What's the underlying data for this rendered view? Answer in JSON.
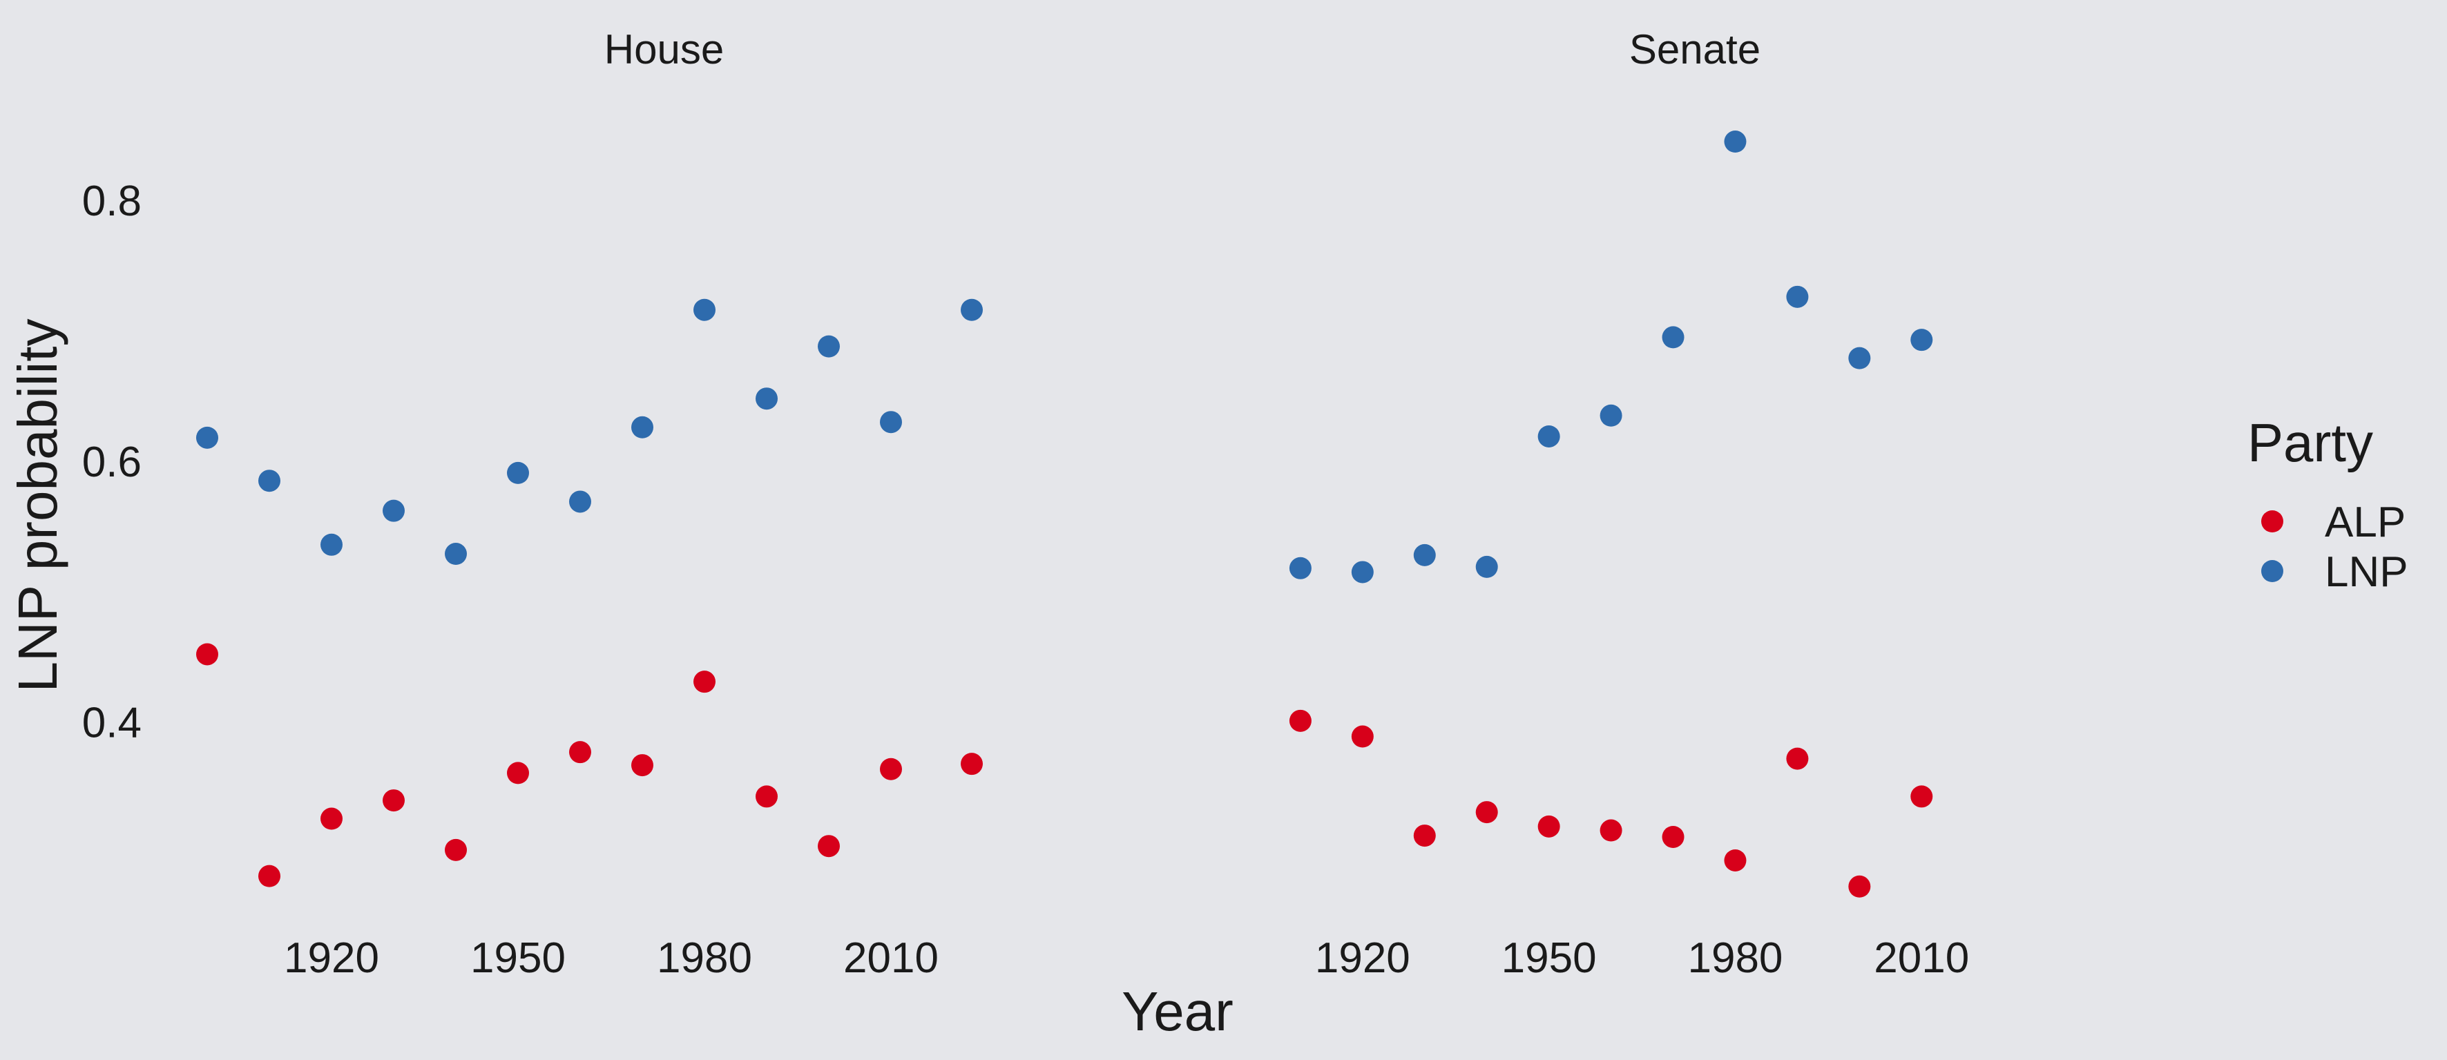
{
  "chart_data": {
    "type": "scatter",
    "xlabel": "Year",
    "ylabel": "LNP probability",
    "ylim": [
      0.24,
      0.89
    ],
    "y_ticks": [
      0.4,
      0.6,
      0.8
    ],
    "y_tick_labels": [
      "0.4",
      "0.6",
      "0.8"
    ],
    "grid": false,
    "legend": {
      "title": "Party",
      "placement": "right",
      "entries": [
        {
          "name": "ALP",
          "color": "#D7001A"
        },
        {
          "name": "LNP",
          "color": "#2E6BAD"
        }
      ]
    },
    "panels": [
      {
        "title": "House",
        "xlim": [
          1895,
          2052
        ],
        "x_ticks": [
          1920,
          1950,
          1980,
          2010
        ],
        "x_tick_labels": [
          "1920",
          "1950",
          "1980",
          "2010"
        ],
        "series": [
          {
            "name": "ALP",
            "color": "#D7001A",
            "points": [
              [
                1900,
                0.452
              ],
              [
                1910,
                0.282
              ],
              [
                1920,
                0.326
              ],
              [
                1930,
                0.34
              ],
              [
                1940,
                0.302
              ],
              [
                1950,
                0.361
              ],
              [
                1960,
                0.377
              ],
              [
                1970,
                0.367
              ],
              [
                1980,
                0.431
              ],
              [
                1990,
                0.343
              ],
              [
                2000,
                0.305
              ],
              [
                2010,
                0.364
              ],
              [
                2023,
                0.368
              ]
            ]
          },
          {
            "name": "LNP",
            "color": "#2E6BAD",
            "points": [
              [
                1900,
                0.618
              ],
              [
                1910,
                0.585
              ],
              [
                1920,
                0.536
              ],
              [
                1930,
                0.562
              ],
              [
                1940,
                0.529
              ],
              [
                1950,
                0.591
              ],
              [
                1960,
                0.569
              ],
              [
                1970,
                0.626
              ],
              [
                1980,
                0.716
              ],
              [
                1990,
                0.648
              ],
              [
                2000,
                0.688
              ],
              [
                2010,
                0.63
              ],
              [
                2023,
                0.716
              ]
            ]
          }
        ]
      },
      {
        "title": "Senate",
        "xlim": [
          1895,
          2052
        ],
        "x_ticks": [
          1920,
          1950,
          1980,
          2010
        ],
        "x_tick_labels": [
          "1920",
          "1950",
          "1980",
          "2010"
        ],
        "series": [
          {
            "name": "ALP",
            "color": "#D7001A",
            "points": [
              [
                1910,
                0.401
              ],
              [
                1920,
                0.389
              ],
              [
                1930,
                0.313
              ],
              [
                1940,
                0.331
              ],
              [
                1950,
                0.32
              ],
              [
                1960,
                0.317
              ],
              [
                1970,
                0.312
              ],
              [
                1980,
                0.294
              ],
              [
                1990,
                0.372
              ],
              [
                2000,
                0.274
              ],
              [
                2010,
                0.343
              ]
            ]
          },
          {
            "name": "LNP",
            "color": "#2E6BAD",
            "points": [
              [
                1910,
                0.518
              ],
              [
                1920,
                0.515
              ],
              [
                1930,
                0.528
              ],
              [
                1940,
                0.519
              ],
              [
                1950,
                0.619
              ],
              [
                1960,
                0.635
              ],
              [
                1970,
                0.695
              ],
              [
                1980,
                0.845
              ],
              [
                1990,
                0.726
              ],
              [
                2000,
                0.679
              ],
              [
                2010,
                0.693
              ]
            ]
          }
        ]
      }
    ]
  }
}
